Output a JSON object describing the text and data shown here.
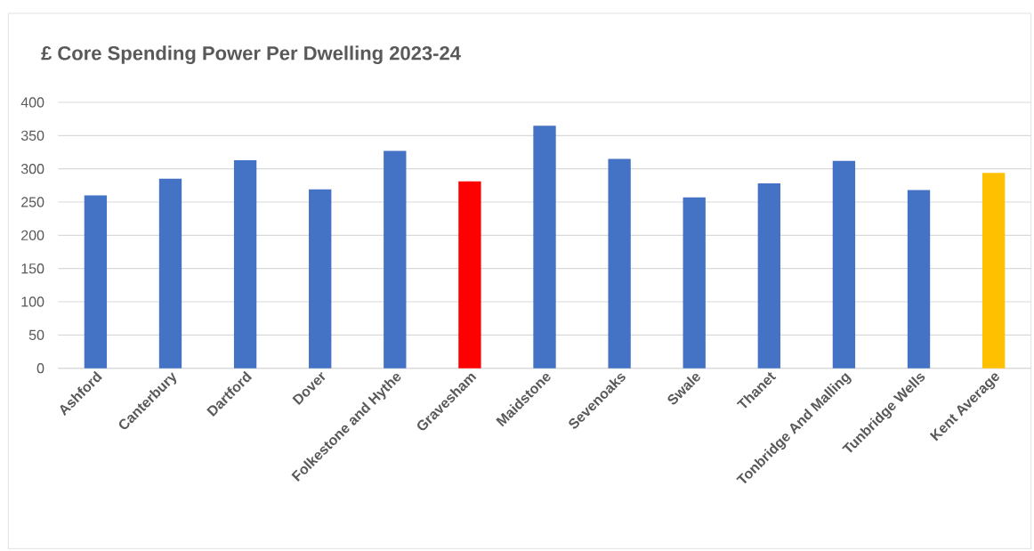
{
  "chart_data": {
    "type": "bar",
    "title": "£  Core Spending Power Per Dwelling 2023-24",
    "categories": [
      "Ashford",
      "Canterbury",
      "Dartford",
      "Dover",
      "Folkestone and Hythe",
      "Gravesham",
      "Maidstone",
      "Sevenoaks",
      "Swale",
      "Thanet",
      "Tonbridge And Malling",
      "Tunbridge Wells",
      "Kent Average"
    ],
    "values": [
      260,
      285,
      313,
      269,
      327,
      281,
      365,
      315,
      257,
      278,
      312,
      268,
      294
    ],
    "colors": [
      "#4472c4",
      "#4472c4",
      "#4472c4",
      "#4472c4",
      "#4472c4",
      "#ff0000",
      "#4472c4",
      "#4472c4",
      "#4472c4",
      "#4472c4",
      "#4472c4",
      "#4472c4",
      "#ffc000"
    ],
    "ylim": [
      0,
      400
    ],
    "yticks": [
      0,
      50,
      100,
      150,
      200,
      250,
      300,
      350,
      400
    ],
    "grid": "y"
  }
}
